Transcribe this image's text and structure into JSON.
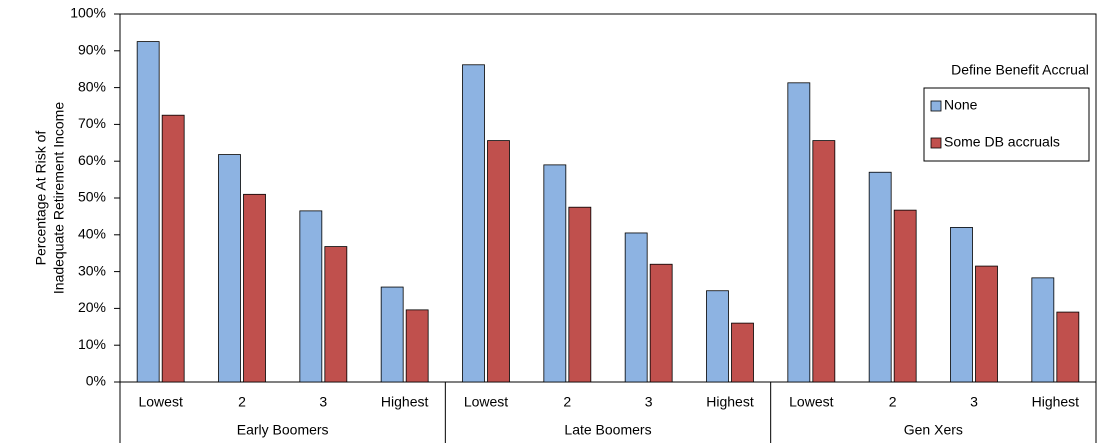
{
  "chart_data": {
    "type": "bar",
    "y_label": [
      "Percentage At Risk of",
      "Inadequate Retirement Income"
    ],
    "groups": [
      {
        "name": "Early Boomers",
        "categories": [
          "Lowest",
          "2",
          "3",
          "Highest"
        ]
      },
      {
        "name": "Late Boomers",
        "categories": [
          "Lowest",
          "2",
          "3",
          "Highest"
        ]
      },
      {
        "name": "Gen Xers",
        "categories": [
          "Lowest",
          "2",
          "3",
          "Highest"
        ]
      }
    ],
    "series": [
      {
        "name": "None",
        "color": "#8db3e2",
        "values": [
          92.5,
          61.8,
          46.5,
          25.8,
          86.2,
          59,
          40.5,
          24.8,
          81.3,
          57,
          42,
          28.3
        ]
      },
      {
        "name": "Some DB accruals",
        "color": "#c0504d",
        "values": [
          72.5,
          51,
          36.8,
          19.6,
          65.6,
          47.5,
          32,
          16,
          65.6,
          46.7,
          31.5,
          19
        ]
      }
    ],
    "legend_title": "Define Benefit Accrual",
    "legend_position": "upper right",
    "ylim": [
      0,
      100
    ],
    "yticks": [
      {
        "value": 0,
        "label": "0%"
      },
      {
        "value": 10,
        "label": "10%"
      },
      {
        "value": 20,
        "label": "20%"
      },
      {
        "value": 30,
        "label": "30%"
      },
      {
        "value": 40,
        "label": "40%"
      },
      {
        "value": 50,
        "label": "50%"
      },
      {
        "value": 60,
        "label": "60%"
      },
      {
        "value": 70,
        "label": "70%"
      },
      {
        "value": 80,
        "label": "80%"
      },
      {
        "value": 90,
        "label": "90%"
      },
      {
        "value": 100,
        "label": "100%"
      }
    ],
    "grid": false
  }
}
